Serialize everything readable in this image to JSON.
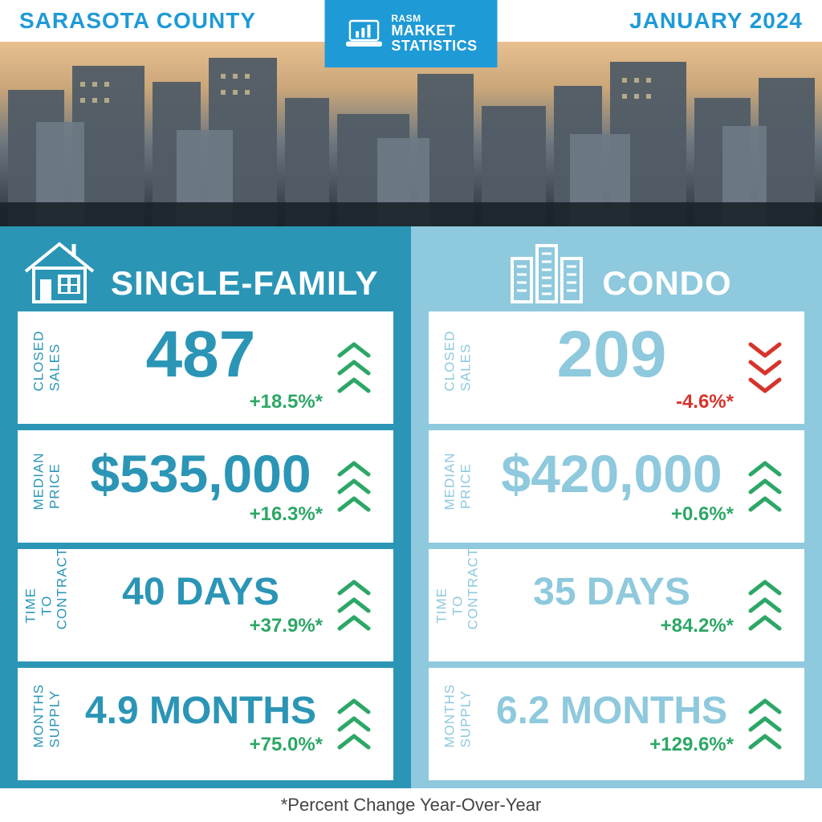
{
  "header": {
    "left": "SARASOTA COUNTY",
    "right": "JANUARY 2024",
    "logo": {
      "l1": "RASM",
      "l2": "MARKET",
      "l3": "STATISTICS"
    }
  },
  "colors": {
    "brand_blue": "#1e9ad6",
    "left_panel": "#2b95b6",
    "right_panel": "#8ec9dd",
    "sf_text": "#2b95b6",
    "condo_text": "#8ec9dd",
    "up_arrow": "#2ca766",
    "down_arrow": "#d6342c",
    "change_up": "#2ca766",
    "change_down": "#d6342c"
  },
  "footnote": "*Percent Change Year-Over-Year",
  "panels": {
    "single_family": {
      "title": "SINGLE-FAMILY",
      "value_color": "#2b95b6",
      "label_color": "#2b95b6",
      "metrics": [
        {
          "label": "CLOSED\nSALES",
          "value": "487",
          "size": "huge",
          "change": "+18.5%*",
          "direction": "up"
        },
        {
          "label": "MEDIAN\nPRICE",
          "value": "$535,000",
          "size": "big",
          "change": "+16.3%*",
          "direction": "up"
        },
        {
          "label": "TIME TO\nCONTRACT",
          "value": "40 DAYS",
          "size": "med",
          "change": "+37.9%*",
          "direction": "up"
        },
        {
          "label": "MONTHS\nSUPPLY",
          "value": "4.9 MONTHS",
          "size": "med",
          "change": "+75.0%*",
          "direction": "up"
        }
      ]
    },
    "condo": {
      "title": "CONDO",
      "value_color": "#8ec9dd",
      "label_color": "#8ec9dd",
      "metrics": [
        {
          "label": "CLOSED\nSALES",
          "value": "209",
          "size": "huge",
          "change": "-4.6%*",
          "direction": "down"
        },
        {
          "label": "MEDIAN\nPRICE",
          "value": "$420,000",
          "size": "big",
          "change": "+0.6%*",
          "direction": "up"
        },
        {
          "label": "TIME TO\nCONTRACT",
          "value": "35 DAYS",
          "size": "med",
          "change": "+84.2%*",
          "direction": "up"
        },
        {
          "label": "MONTHS\nSUPPLY",
          "value": "6.2 MONTHS",
          "size": "med",
          "change": "+129.6%*",
          "direction": "up"
        }
      ]
    }
  }
}
